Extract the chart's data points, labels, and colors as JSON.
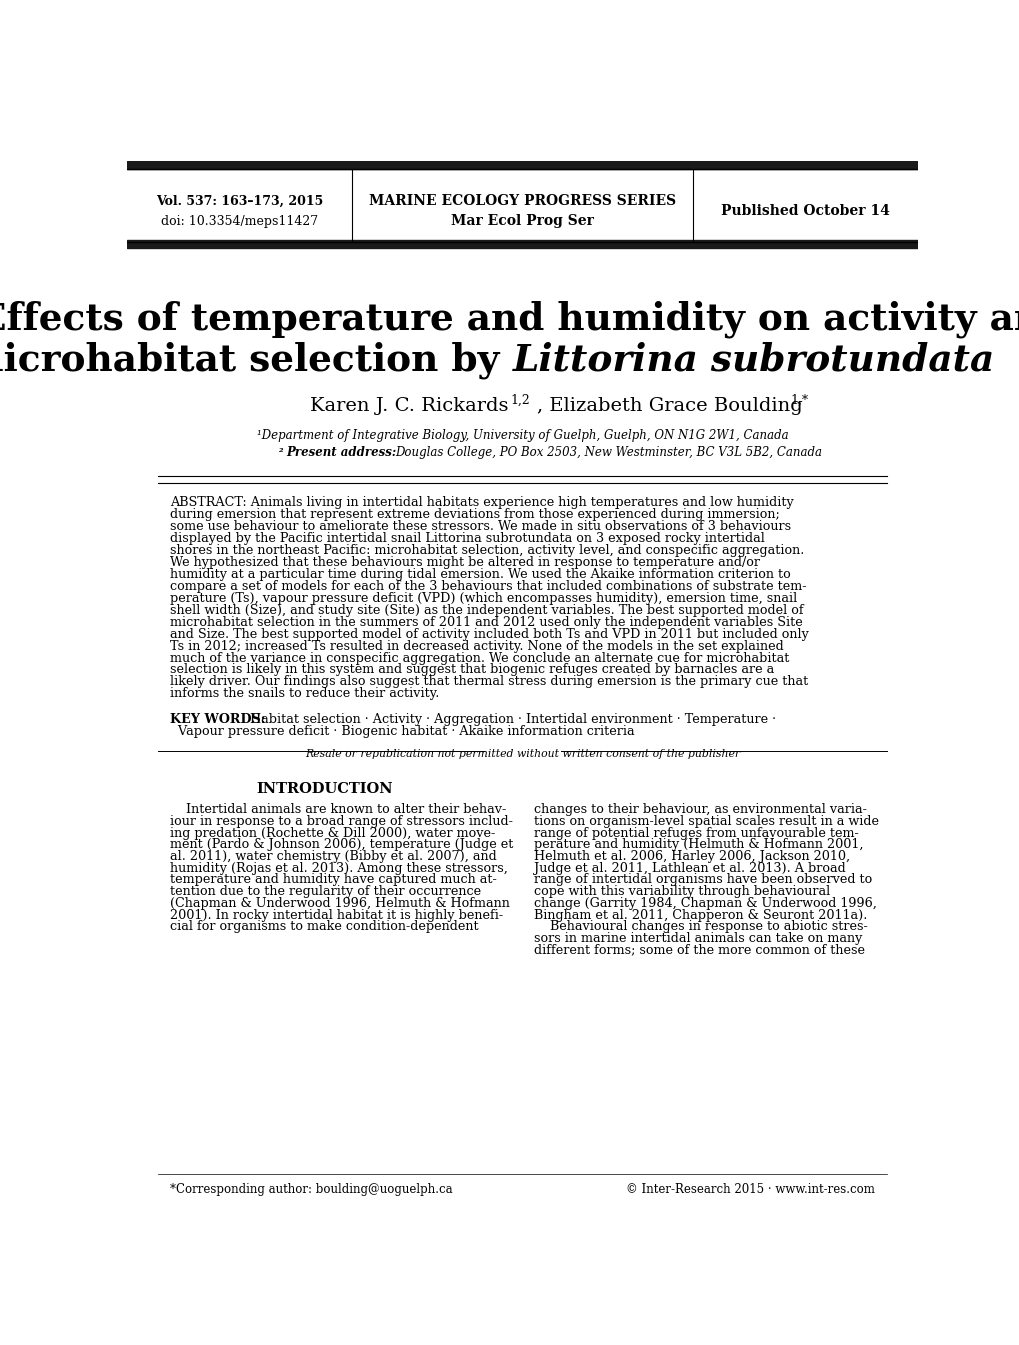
{
  "header_left_line1": "Vol. 537: 163–173, 2015",
  "header_left_line2": "doi: 10.3354/meps11427",
  "header_center_line1": "MARINE ECOLOGY PROGRESS SERIES",
  "header_center_line2": "Mar Ecol Prog Ser",
  "header_right": "Published October 14",
  "title_line1": "Effects of temperature and humidity on activity and",
  "title_line2_normal": "microhabitat selection by ",
  "title_line2_italic": "Littorina subrotundata",
  "affil1": "¹Department of Integrative Biology, University of Guelph, Guelph, ON N1G 2W1, Canada",
  "footer_left": "*Corresponding author: boulding@uoguelph.ca",
  "footer_right": "© Inter-Research 2015 · www.int-res.com",
  "bg_color": "#ffffff",
  "text_color": "#000000",
  "header_bar_color": "#1a1a1a"
}
